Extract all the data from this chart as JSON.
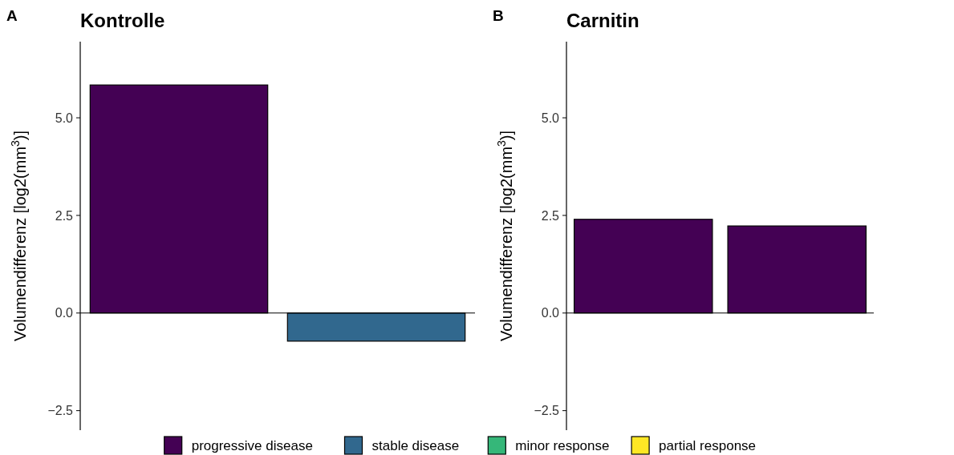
{
  "chart_data": [
    {
      "type": "bar",
      "title": "Kontrolle",
      "annotations": [
        "A"
      ],
      "ylabel": "Volumendifferenz [log2(mm$^{3}$)]",
      "categories": [
        null,
        null
      ],
      "series": [
        {
          "name": "progressive disease",
          "color": "#440154",
          "values": [
            5.84,
            null
          ]
        },
        {
          "name": "stable disease",
          "color": "#31688e",
          "values": [
            null,
            -0.72
          ]
        },
        {
          "name": "minor response",
          "color": "#35b779",
          "values": [
            null,
            null
          ]
        },
        {
          "name": "partial response",
          "color": "#fde725",
          "values": [
            null,
            null
          ]
        }
      ],
      "ylim": [
        -3,
        6.95
      ],
      "yticks": [
        {
          "value": -2.5,
          "label": "−2.5"
        },
        {
          "value": 0,
          "label": "0.0"
        },
        {
          "value": 2.5,
          "label": "2.5"
        },
        {
          "value": 5,
          "label": "5.0"
        }
      ],
      "legend": "bottom"
    },
    {
      "type": "bar",
      "title": "Carnitin",
      "annotations": [
        "B"
      ],
      "ylabel": "Volumendifferenz [log2(mm$^{3}$)]",
      "categories": [
        null,
        null
      ],
      "series": [
        {
          "color": "#440154",
          "values": [
            2.4,
            2.23
          ]
        }
      ],
      "ylim": [
        -3,
        6.95
      ],
      "yticks": [
        {
          "value": -2.5,
          "label": "−2.5"
        },
        {
          "value": 0,
          "label": "0.0"
        },
        {
          "value": 2.5,
          "label": "2.5"
        },
        {
          "value": 5,
          "label": "5.0"
        }
      ]
    }
  ]
}
